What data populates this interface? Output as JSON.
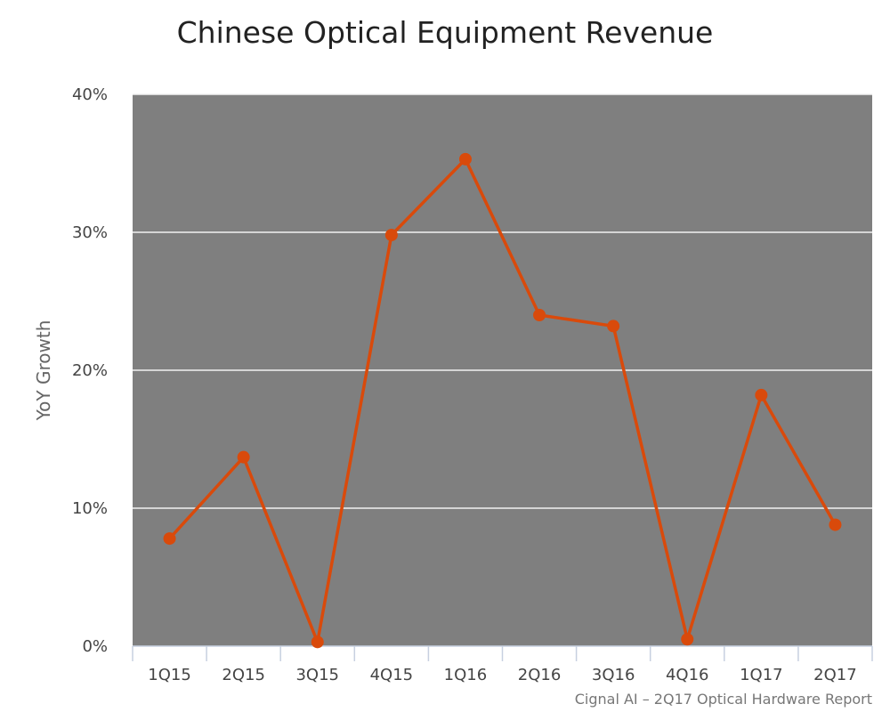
{
  "chart_data": {
    "type": "line",
    "title": "Chinese Optical Equipment Revenue",
    "xlabel": "",
    "ylabel": "YoY Growth",
    "categories": [
      "1Q15",
      "2Q15",
      "3Q15",
      "4Q15",
      "1Q16",
      "2Q16",
      "3Q16",
      "4Q16",
      "1Q17",
      "2Q17"
    ],
    "values": [
      7.8,
      13.7,
      0.3,
      29.8,
      35.3,
      24.0,
      23.2,
      0.5,
      18.2,
      8.8
    ],
    "ylim": [
      0,
      40
    ],
    "yticks": [
      0,
      10,
      20,
      30,
      40
    ],
    "ytick_labels": [
      "0%",
      "10%",
      "20%",
      "30%",
      "40%"
    ],
    "grid": true,
    "legend": "none",
    "source_note": "Cignal AI – 2Q17 Optical Hardware Report",
    "colors": {
      "plot_background": "#7f7f7f",
      "series": "#d94a0b",
      "grid": "#f2f2f2",
      "title": "#222222",
      "axis_text": "#444444"
    }
  }
}
